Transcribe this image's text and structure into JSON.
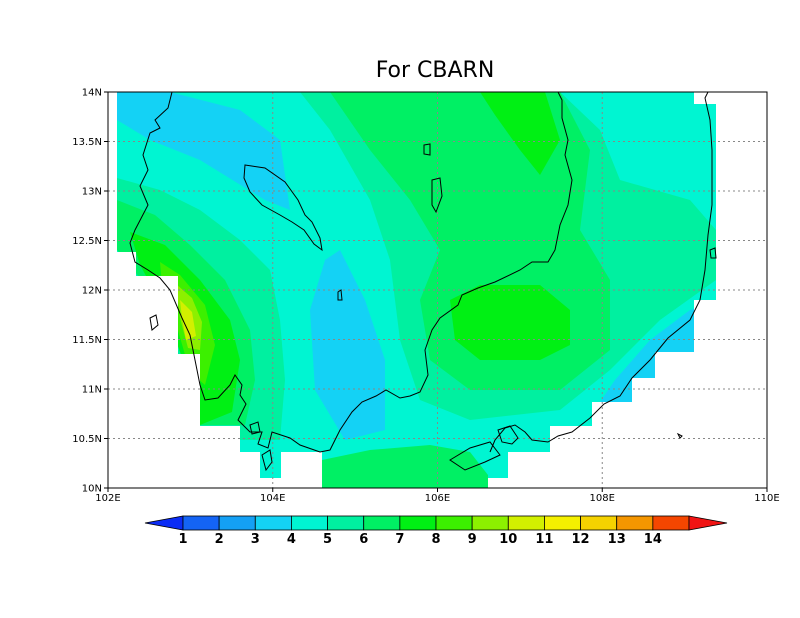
{
  "title": "For CBARN",
  "map": {
    "lon_range": [
      102,
      110
    ],
    "lat_range": [
      10,
      14
    ],
    "x_ticks": [
      {
        "value": 102,
        "label": "102E"
      },
      {
        "value": 104,
        "label": "104E"
      },
      {
        "value": 106,
        "label": "106E"
      },
      {
        "value": 108,
        "label": "108E"
      },
      {
        "value": 110,
        "label": "110E"
      }
    ],
    "y_ticks": [
      {
        "value": 10,
        "label": "10N"
      },
      {
        "value": 10.5,
        "label": "10.5N"
      },
      {
        "value": 11,
        "label": "11N"
      },
      {
        "value": 11.5,
        "label": "11.5N"
      },
      {
        "value": 12,
        "label": "12N"
      },
      {
        "value": 12.5,
        "label": "12.5N"
      },
      {
        "value": 13,
        "label": "13N"
      },
      {
        "value": 13.5,
        "label": "13.5N"
      },
      {
        "value": 14,
        "label": "14N"
      }
    ],
    "grid": "dotted"
  },
  "colorbar": {
    "labels": [
      "1",
      "2",
      "3",
      "4",
      "5",
      "6",
      "7",
      "8",
      "9",
      "10",
      "11",
      "12",
      "13",
      "14"
    ],
    "colors": [
      "#0b2cf5",
      "#1464f5",
      "#14a0f5",
      "#14d2f5",
      "#00f5d2",
      "#00f0a0",
      "#00f064",
      "#00f014",
      "#3cf000",
      "#8cf000",
      "#d2f000",
      "#f5f000",
      "#f5d200",
      "#f59600",
      "#f54600",
      "#f01414"
    ]
  },
  "colors": {
    "c3": "#14d2f5",
    "c4": "#00f5d2",
    "c5": "#00f0a0",
    "c6": "#00f064",
    "c7": "#00f014",
    "c8": "#3cf000",
    "c9": "#8cf000",
    "c10": "#d2f000"
  }
}
